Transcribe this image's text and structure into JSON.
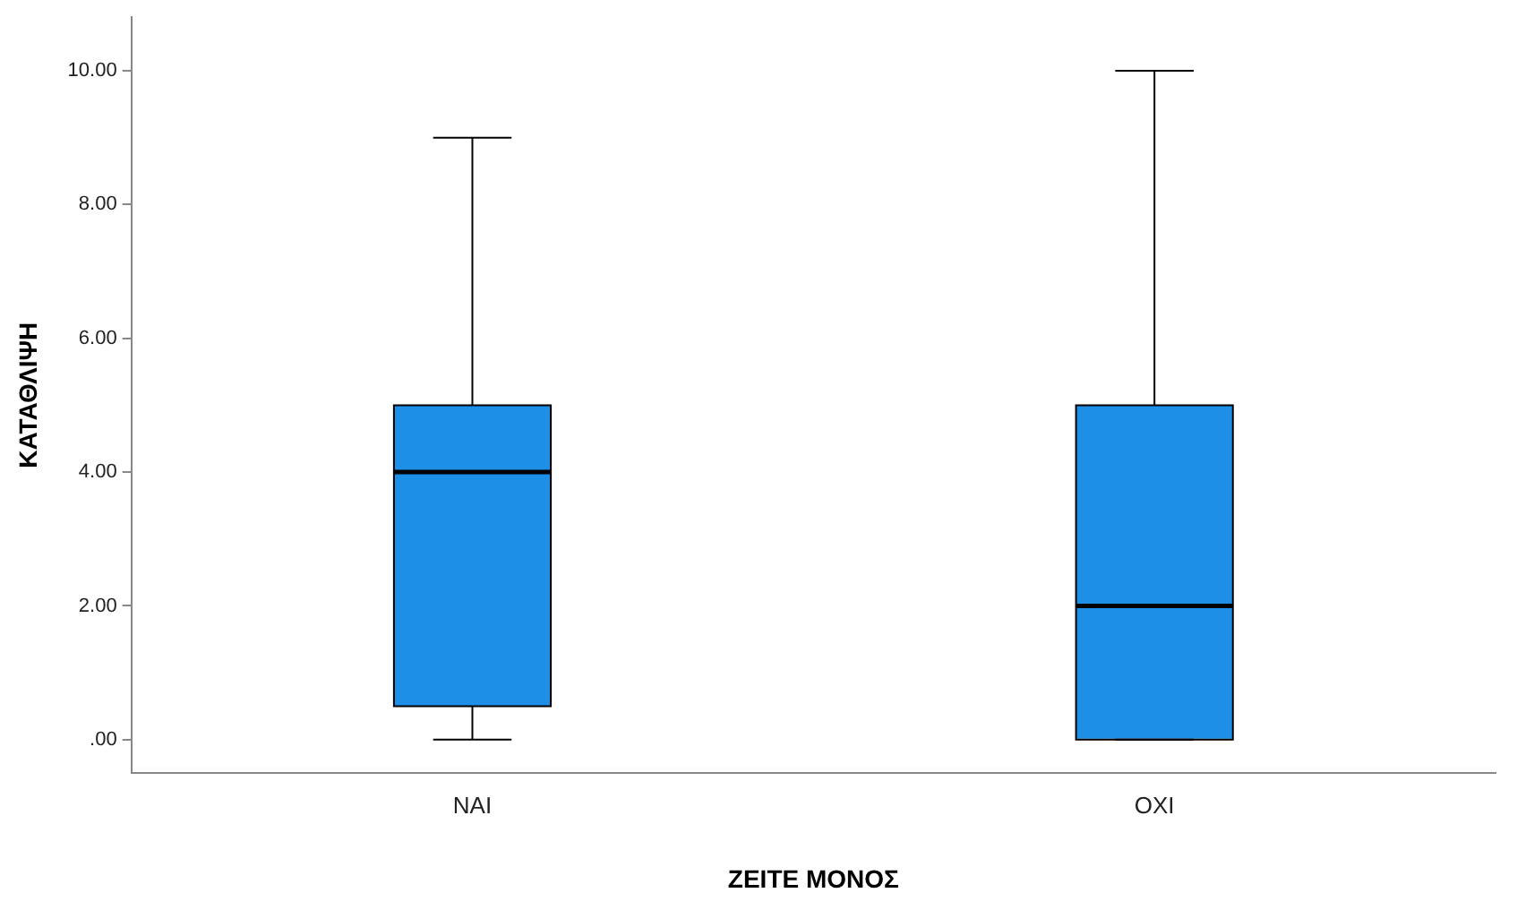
{
  "chart_data": {
    "type": "box",
    "xlabel": "ΖΕΙΤΕ ΜΟΝΟΣ",
    "ylabel": "ΚΑΤΑΘΛΙΨΗ",
    "categories": [
      "ΝΑΙ",
      "ΟΧΙ"
    ],
    "color": "#1e8fe6",
    "boxes": [
      {
        "low": 0,
        "q1": 0.5,
        "median": 4,
        "q3": 5,
        "high": 9
      },
      {
        "low": 0,
        "q1": 0,
        "median": 2,
        "q3": 5,
        "high": 10
      }
    ],
    "ylim": [
      -0.5,
      10.8
    ],
    "yticks": [
      {
        "value": 0,
        "label": ".00"
      },
      {
        "value": 2,
        "label": "2.00"
      },
      {
        "value": 4,
        "label": "4.00"
      },
      {
        "value": 6,
        "label": "6.00"
      },
      {
        "value": 8,
        "label": "8.00"
      },
      {
        "value": 10,
        "label": "10.00"
      }
    ],
    "grid": false
  }
}
